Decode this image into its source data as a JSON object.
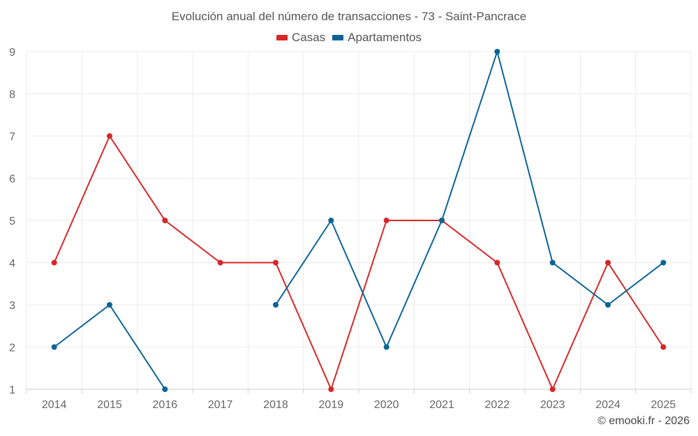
{
  "chart_data": {
    "type": "line",
    "title": "Evolución anual del número de transacciones - 73 - Saint-Pancrace",
    "xlabel": "",
    "ylabel": "",
    "x": [
      "2014",
      "2015",
      "2016",
      "2017",
      "2018",
      "2019",
      "2020",
      "2021",
      "2022",
      "2023",
      "2024",
      "2025"
    ],
    "ylim": [
      1,
      9
    ],
    "yticks": [
      1,
      2,
      3,
      4,
      5,
      6,
      7,
      8,
      9
    ],
    "grid": true,
    "legend_position": "top-center",
    "series": [
      {
        "name": "Casas",
        "color": "#d62728",
        "values": [
          4,
          7,
          5,
          4,
          4,
          1,
          5,
          5,
          4,
          1,
          4,
          2
        ]
      },
      {
        "name": "Apartamentos",
        "color": "#0a6496",
        "values": [
          2,
          3,
          1,
          null,
          3,
          5,
          2,
          5,
          9,
          4,
          3,
          4
        ]
      }
    ]
  },
  "credit": "© emooki.fr - 2026"
}
